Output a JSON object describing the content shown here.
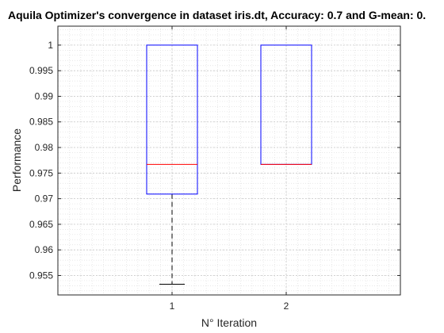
{
  "chart_data": {
    "type": "boxplot",
    "title": "Aquila Optimizer's convergence in dataset iris.dt, Accuracy: 0.7 and G-mean: 0.",
    "xlabel": "N° Iteration",
    "ylabel": "Performance",
    "categories": [
      "1",
      "2"
    ],
    "ylim": [
      0.9512,
      1.0037
    ],
    "yticks": [
      0.955,
      0.96,
      0.965,
      0.97,
      0.975,
      0.98,
      0.985,
      0.99,
      0.995,
      1
    ],
    "ytick_labels": [
      "0.955",
      "0.96",
      "0.965",
      "0.97",
      "0.975",
      "0.98",
      "0.985",
      "0.99",
      "0.995",
      "1"
    ],
    "grid": true,
    "minor_grid": true,
    "boxes": [
      {
        "category": "1",
        "min": 0.9533,
        "q1": 0.9709,
        "median": 0.9767,
        "q3": 1.0,
        "max": 1.0
      },
      {
        "category": "2",
        "min": 0.9767,
        "q1": 0.9767,
        "median": 0.9767,
        "q3": 1.0,
        "max": 1.0
      }
    ],
    "colors": {
      "box": "#0000ff",
      "median": "#ff0000",
      "whisker": "#000000",
      "grid": "#dfdfdf"
    }
  }
}
